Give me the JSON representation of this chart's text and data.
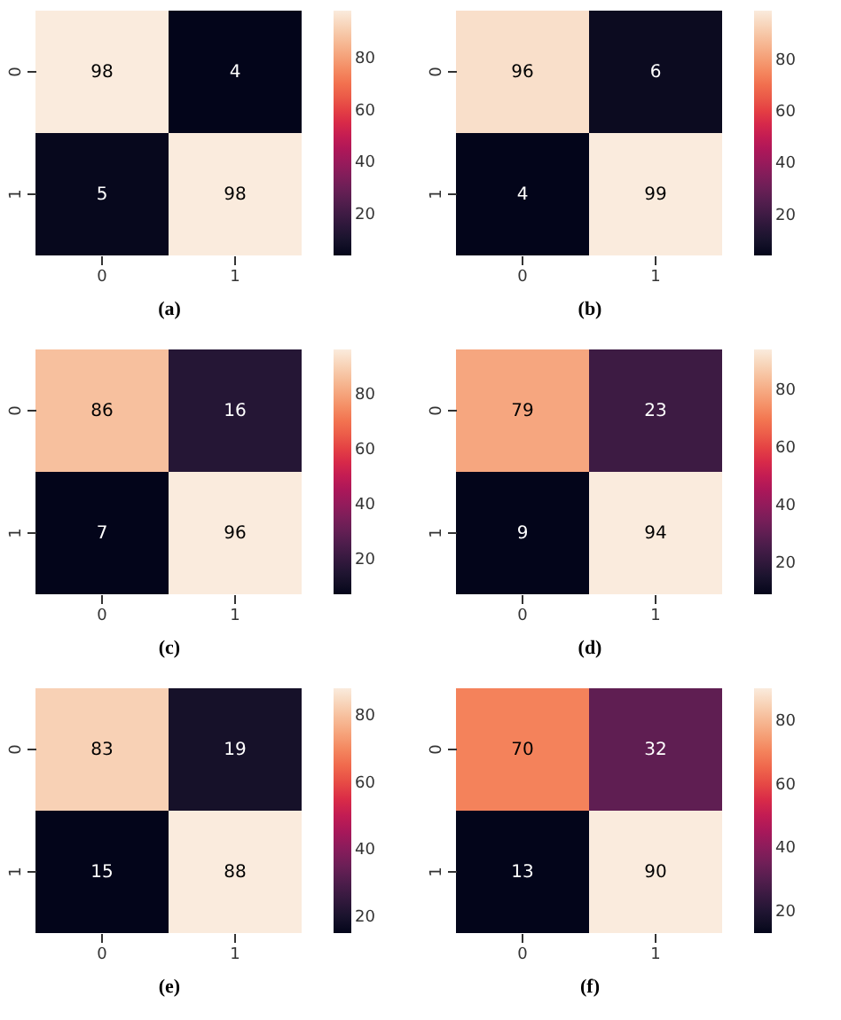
{
  "chart_data": [
    {
      "type": "heatmap",
      "xlabel": "(a)",
      "categories": [
        "0",
        "1"
      ],
      "y_categories": [
        "0",
        "1"
      ],
      "cells": [
        [
          98,
          4
        ],
        [
          5,
          98
        ]
      ],
      "clim": [
        4,
        98
      ],
      "cticks": [
        20,
        40,
        60,
        80
      ],
      "data_labels": true
    },
    {
      "type": "heatmap",
      "xlabel": "(b)",
      "categories": [
        "0",
        "1"
      ],
      "y_categories": [
        "0",
        "1"
      ],
      "cells": [
        [
          96,
          6
        ],
        [
          4,
          99
        ]
      ],
      "clim": [
        4,
        99
      ],
      "cticks": [
        20,
        40,
        60,
        80
      ],
      "data_labels": true
    },
    {
      "type": "heatmap",
      "xlabel": "(c)",
      "categories": [
        "0",
        "1"
      ],
      "y_categories": [
        "0",
        "1"
      ],
      "cells": [
        [
          86,
          16
        ],
        [
          7,
          96
        ]
      ],
      "clim": [
        7,
        96
      ],
      "cticks": [
        20,
        40,
        60,
        80
      ],
      "data_labels": true
    },
    {
      "type": "heatmap",
      "xlabel": "(d)",
      "categories": [
        "0",
        "1"
      ],
      "y_categories": [
        "0",
        "1"
      ],
      "cells": [
        [
          79,
          23
        ],
        [
          9,
          94
        ]
      ],
      "clim": [
        9,
        94
      ],
      "cticks": [
        20,
        40,
        60,
        80
      ],
      "data_labels": true
    },
    {
      "type": "heatmap",
      "xlabel": "(e)",
      "categories": [
        "0",
        "1"
      ],
      "y_categories": [
        "0",
        "1"
      ],
      "cells": [
        [
          83,
          19
        ],
        [
          15,
          88
        ]
      ],
      "clim": [
        15,
        88
      ],
      "cticks": [
        20,
        40,
        60,
        80
      ],
      "data_labels": true
    },
    {
      "type": "heatmap",
      "xlabel": "(f)",
      "categories": [
        "0",
        "1"
      ],
      "y_categories": [
        "0",
        "1"
      ],
      "cells": [
        [
          70,
          32
        ],
        [
          13,
          90
        ]
      ],
      "clim": [
        13,
        90
      ],
      "cticks": [
        20,
        40,
        60,
        80
      ],
      "data_labels": true
    }
  ]
}
